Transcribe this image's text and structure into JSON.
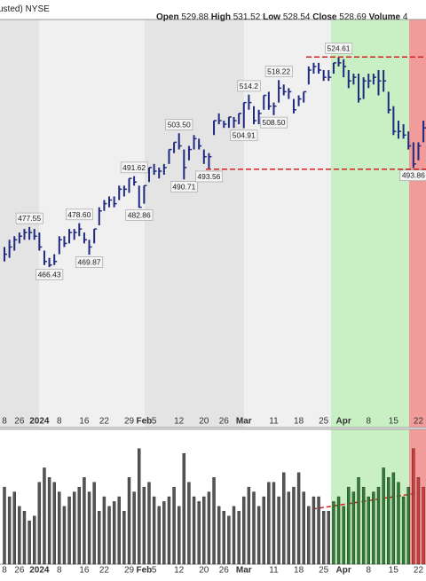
{
  "header": {
    "left": "usted)",
    "exchange": "NYSE",
    "open_label": "Open",
    "open": 529.88,
    "high_label": "High",
    "high": 531.52,
    "low_label": "Low",
    "low": 528.54,
    "close_label": "Close",
    "close": 528.69,
    "volume_label": "Volume",
    "volume": "4"
  },
  "chart_data": {
    "type": "ohlc",
    "color": "#1f2a80",
    "categories": [
      "8",
      null,
      null,
      "26",
      null,
      null,
      null,
      "2024",
      null,
      null,
      null,
      "8",
      null,
      null,
      null,
      null,
      "16",
      null,
      null,
      null,
      "22",
      null,
      null,
      null,
      null,
      "29",
      null,
      null,
      "Feb",
      null,
      "5",
      null,
      null,
      null,
      null,
      "12",
      null,
      null,
      null,
      null,
      "20",
      null,
      null,
      null,
      "26",
      null,
      null,
      null,
      "Mar",
      null,
      null,
      null,
      null,
      null,
      "11",
      null,
      null,
      null,
      null,
      "18",
      null,
      null,
      null,
      null,
      "25",
      null,
      null,
      null,
      "Apr",
      null,
      null,
      null,
      null,
      "8",
      null,
      null,
      null,
      null,
      "15",
      null,
      null,
      null,
      null,
      "22",
      null
    ],
    "high": [
      472,
      474,
      475,
      476,
      477,
      477.55,
      477,
      476,
      471,
      469,
      470,
      475,
      475,
      477,
      477,
      478.6,
      476,
      474,
      477,
      483,
      485,
      486,
      486,
      489,
      489,
      491,
      491.62,
      489,
      489,
      494,
      495,
      494,
      495,
      499,
      501,
      503.5,
      499,
      500,
      503,
      502,
      499,
      498,
      507,
      509,
      507,
      508,
      508,
      509,
      512,
      514.2,
      511,
      510,
      514,
      515,
      512,
      518.22,
      517,
      516,
      513,
      514,
      515,
      522,
      523,
      523,
      521,
      521,
      523,
      524.61,
      524,
      521,
      520,
      520,
      519,
      520,
      520,
      521,
      521,
      515,
      511,
      507,
      506,
      504,
      501,
      501,
      507
    ],
    "low": [
      468,
      469,
      471,
      473,
      474,
      474,
      474,
      471,
      467,
      466.43,
      467,
      470,
      472,
      473,
      474,
      475,
      473,
      469.87,
      473,
      478,
      482,
      483,
      483,
      485,
      486,
      487,
      489,
      482.86,
      484,
      490,
      492,
      491,
      492,
      495,
      498,
      499,
      490.71,
      496,
      499,
      499,
      495,
      493.56,
      503,
      506,
      505,
      505,
      505,
      506,
      504.91,
      510,
      506,
      506,
      510,
      510,
      508.5,
      512,
      514,
      513,
      509,
      511,
      512,
      517,
      520,
      520,
      518,
      518,
      520,
      522,
      519,
      516,
      517,
      512,
      513,
      516,
      517,
      514,
      515,
      509,
      503,
      502,
      502,
      499,
      493.86,
      496,
      501
    ],
    "close": [
      470,
      472,
      474,
      475,
      476,
      476,
      475,
      472,
      468,
      467,
      468,
      474,
      473,
      476,
      476,
      477,
      474,
      472,
      477,
      482,
      484,
      485,
      484,
      488,
      488,
      491,
      490,
      483,
      489,
      494,
      493,
      493,
      494,
      499,
      501,
      500,
      494,
      499,
      502,
      500,
      497,
      497,
      507,
      507,
      506,
      508,
      507,
      509,
      512,
      512,
      507,
      509,
      514,
      511,
      511,
      516,
      515,
      515,
      510,
      513,
      515,
      521,
      522,
      521,
      519,
      519,
      523,
      523,
      522,
      518,
      519,
      513,
      518,
      518,
      519,
      518,
      518,
      510,
      504,
      504,
      503,
      500,
      495,
      500,
      505
    ],
    "ylim": [
      422,
      535
    ],
    "annotations": [
      477.55,
      466.43,
      {
        "value": 478.6,
        "label": "478.60"
      },
      469.87,
      491.62,
      482.86,
      {
        "value": 503.5,
        "label": "503.50"
      },
      490.71,
      493.56,
      514.2,
      504.91,
      {
        "value": 508.5,
        "label": "508.50"
      },
      518.22,
      524.61,
      493.86
    ],
    "volume": [
      80,
      70,
      75,
      60,
      55,
      45,
      50,
      85,
      100,
      90,
      85,
      75,
      60,
      70,
      75,
      80,
      90,
      75,
      85,
      55,
      70,
      60,
      65,
      70,
      55,
      90,
      75,
      120,
      80,
      85,
      70,
      60,
      65,
      70,
      80,
      60,
      115,
      85,
      70,
      65,
      70,
      75,
      90,
      60,
      55,
      50,
      60,
      55,
      70,
      80,
      75,
      60,
      70,
      85,
      85,
      70,
      95,
      75,
      80,
      95,
      75,
      60,
      70,
      70,
      55,
      55,
      65,
      70,
      60,
      80,
      75,
      90,
      80,
      70,
      75,
      80,
      100,
      90,
      95,
      85,
      70,
      80,
      120,
      90,
      80
    ],
    "volume_ylim": [
      0,
      140
    ]
  }
}
